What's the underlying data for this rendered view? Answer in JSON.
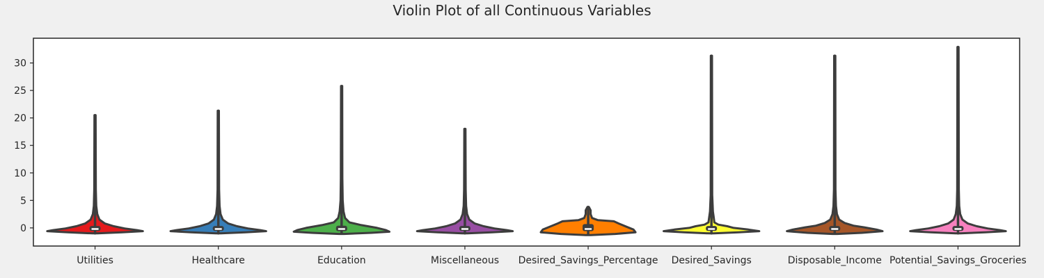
{
  "chart_data": {
    "type": "violin",
    "title": "Violin Plot of all Continuous Variables",
    "xlabel": "",
    "ylabel": "",
    "ylim": [
      -3.3,
      34.5
    ],
    "yticks": [
      0,
      5,
      10,
      15,
      20,
      25,
      30
    ],
    "grid": false,
    "categories": [
      "Utilities",
      "Healthcare",
      "Education",
      "Miscellaneous",
      "Desired_Savings_Percentage",
      "Desired_Savings",
      "Disposable_Income",
      "Potential_Savings_Groceries"
    ],
    "colors": [
      "#e41a1c",
      "#377eb8",
      "#4daf4a",
      "#984ea3",
      "#ff7f00",
      "#ffff33",
      "#a65628",
      "#f781bf"
    ],
    "series": [
      {
        "min": -1.0,
        "q1": -0.55,
        "median": -0.2,
        "q3": 0.35,
        "max": 20.5,
        "profile": [
          [
            -1.0,
            0.05
          ],
          [
            -0.8,
            0.55
          ],
          [
            -0.6,
            0.97
          ],
          [
            -0.4,
            0.85
          ],
          [
            -0.1,
            0.6
          ],
          [
            0.3,
            0.38
          ],
          [
            0.8,
            0.2
          ],
          [
            1.5,
            0.09
          ],
          [
            2.5,
            0.045
          ],
          [
            4.0,
            0.025
          ],
          [
            7.0,
            0.016
          ],
          [
            20.5,
            0.012
          ]
        ]
      },
      {
        "min": -1.0,
        "q1": -0.55,
        "median": -0.2,
        "q3": 0.35,
        "max": 21.3,
        "profile": [
          [
            -1.0,
            0.05
          ],
          [
            -0.8,
            0.55
          ],
          [
            -0.6,
            0.97
          ],
          [
            -0.4,
            0.85
          ],
          [
            -0.1,
            0.6
          ],
          [
            0.3,
            0.38
          ],
          [
            0.8,
            0.2
          ],
          [
            1.5,
            0.09
          ],
          [
            2.5,
            0.045
          ],
          [
            4.0,
            0.025
          ],
          [
            7.0,
            0.016
          ],
          [
            21.3,
            0.012
          ]
        ]
      },
      {
        "min": -1.0,
        "q1": -0.6,
        "median": -0.2,
        "q3": 0.4,
        "max": 25.8,
        "profile": [
          [
            -1.1,
            0.05
          ],
          [
            -0.9,
            0.6
          ],
          [
            -0.7,
            0.97
          ],
          [
            -0.4,
            0.9
          ],
          [
            0.0,
            0.72
          ],
          [
            0.5,
            0.4
          ],
          [
            1.0,
            0.16
          ],
          [
            1.8,
            0.07
          ],
          [
            3.0,
            0.04
          ],
          [
            5.0,
            0.022
          ],
          [
            9.0,
            0.015
          ],
          [
            25.8,
            0.012
          ]
        ]
      },
      {
        "min": -1.0,
        "q1": -0.55,
        "median": -0.2,
        "q3": 0.35,
        "max": 18.0,
        "profile": [
          [
            -1.0,
            0.05
          ],
          [
            -0.8,
            0.55
          ],
          [
            -0.6,
            0.97
          ],
          [
            -0.4,
            0.85
          ],
          [
            -0.1,
            0.6
          ],
          [
            0.3,
            0.38
          ],
          [
            0.8,
            0.2
          ],
          [
            1.5,
            0.09
          ],
          [
            2.5,
            0.045
          ],
          [
            4.0,
            0.025
          ],
          [
            7.0,
            0.016
          ],
          [
            18.0,
            0.012
          ]
        ]
      },
      {
        "min": -1.1,
        "q1": -0.6,
        "median": -0.2,
        "q3": 0.7,
        "max": 3.8,
        "profile": [
          [
            -1.3,
            0.05
          ],
          [
            -1.1,
            0.55
          ],
          [
            -0.8,
            0.96
          ],
          [
            -0.3,
            0.92
          ],
          [
            0.2,
            0.78
          ],
          [
            0.8,
            0.62
          ],
          [
            1.2,
            0.52
          ],
          [
            1.4,
            0.2
          ],
          [
            1.8,
            0.08
          ],
          [
            2.5,
            0.05
          ],
          [
            3.2,
            0.05
          ],
          [
            3.8,
            0.015
          ]
        ]
      },
      {
        "min": -1.0,
        "q1": -0.55,
        "median": -0.2,
        "q3": 0.35,
        "max": 31.3,
        "profile": [
          [
            -1.0,
            0.05
          ],
          [
            -0.8,
            0.55
          ],
          [
            -0.6,
            0.97
          ],
          [
            -0.3,
            0.75
          ],
          [
            0.0,
            0.45
          ],
          [
            0.3,
            0.32
          ],
          [
            0.6,
            0.14
          ],
          [
            1.0,
            0.06
          ],
          [
            2.0,
            0.045
          ],
          [
            3.0,
            0.03
          ],
          [
            6.0,
            0.016
          ],
          [
            31.3,
            0.012
          ]
        ]
      },
      {
        "min": -1.0,
        "q1": -0.55,
        "median": -0.2,
        "q3": 0.35,
        "max": 31.3,
        "profile": [
          [
            -1.1,
            0.05
          ],
          [
            -0.9,
            0.55
          ],
          [
            -0.6,
            0.97
          ],
          [
            -0.3,
            0.85
          ],
          [
            0.1,
            0.6
          ],
          [
            0.4,
            0.38
          ],
          [
            0.9,
            0.2
          ],
          [
            1.5,
            0.09
          ],
          [
            2.5,
            0.045
          ],
          [
            4.0,
            0.025
          ],
          [
            7.0,
            0.016
          ],
          [
            31.3,
            0.012
          ]
        ]
      },
      {
        "min": -1.0,
        "q1": -0.55,
        "median": -0.2,
        "q3": 0.35,
        "max": 32.9,
        "profile": [
          [
            -1.0,
            0.05
          ],
          [
            -0.8,
            0.55
          ],
          [
            -0.6,
            0.97
          ],
          [
            -0.4,
            0.85
          ],
          [
            -0.1,
            0.6
          ],
          [
            0.3,
            0.38
          ],
          [
            0.8,
            0.2
          ],
          [
            1.5,
            0.09
          ],
          [
            2.5,
            0.045
          ],
          [
            4.0,
            0.025
          ],
          [
            7.0,
            0.016
          ],
          [
            32.9,
            0.012
          ]
        ]
      }
    ]
  }
}
